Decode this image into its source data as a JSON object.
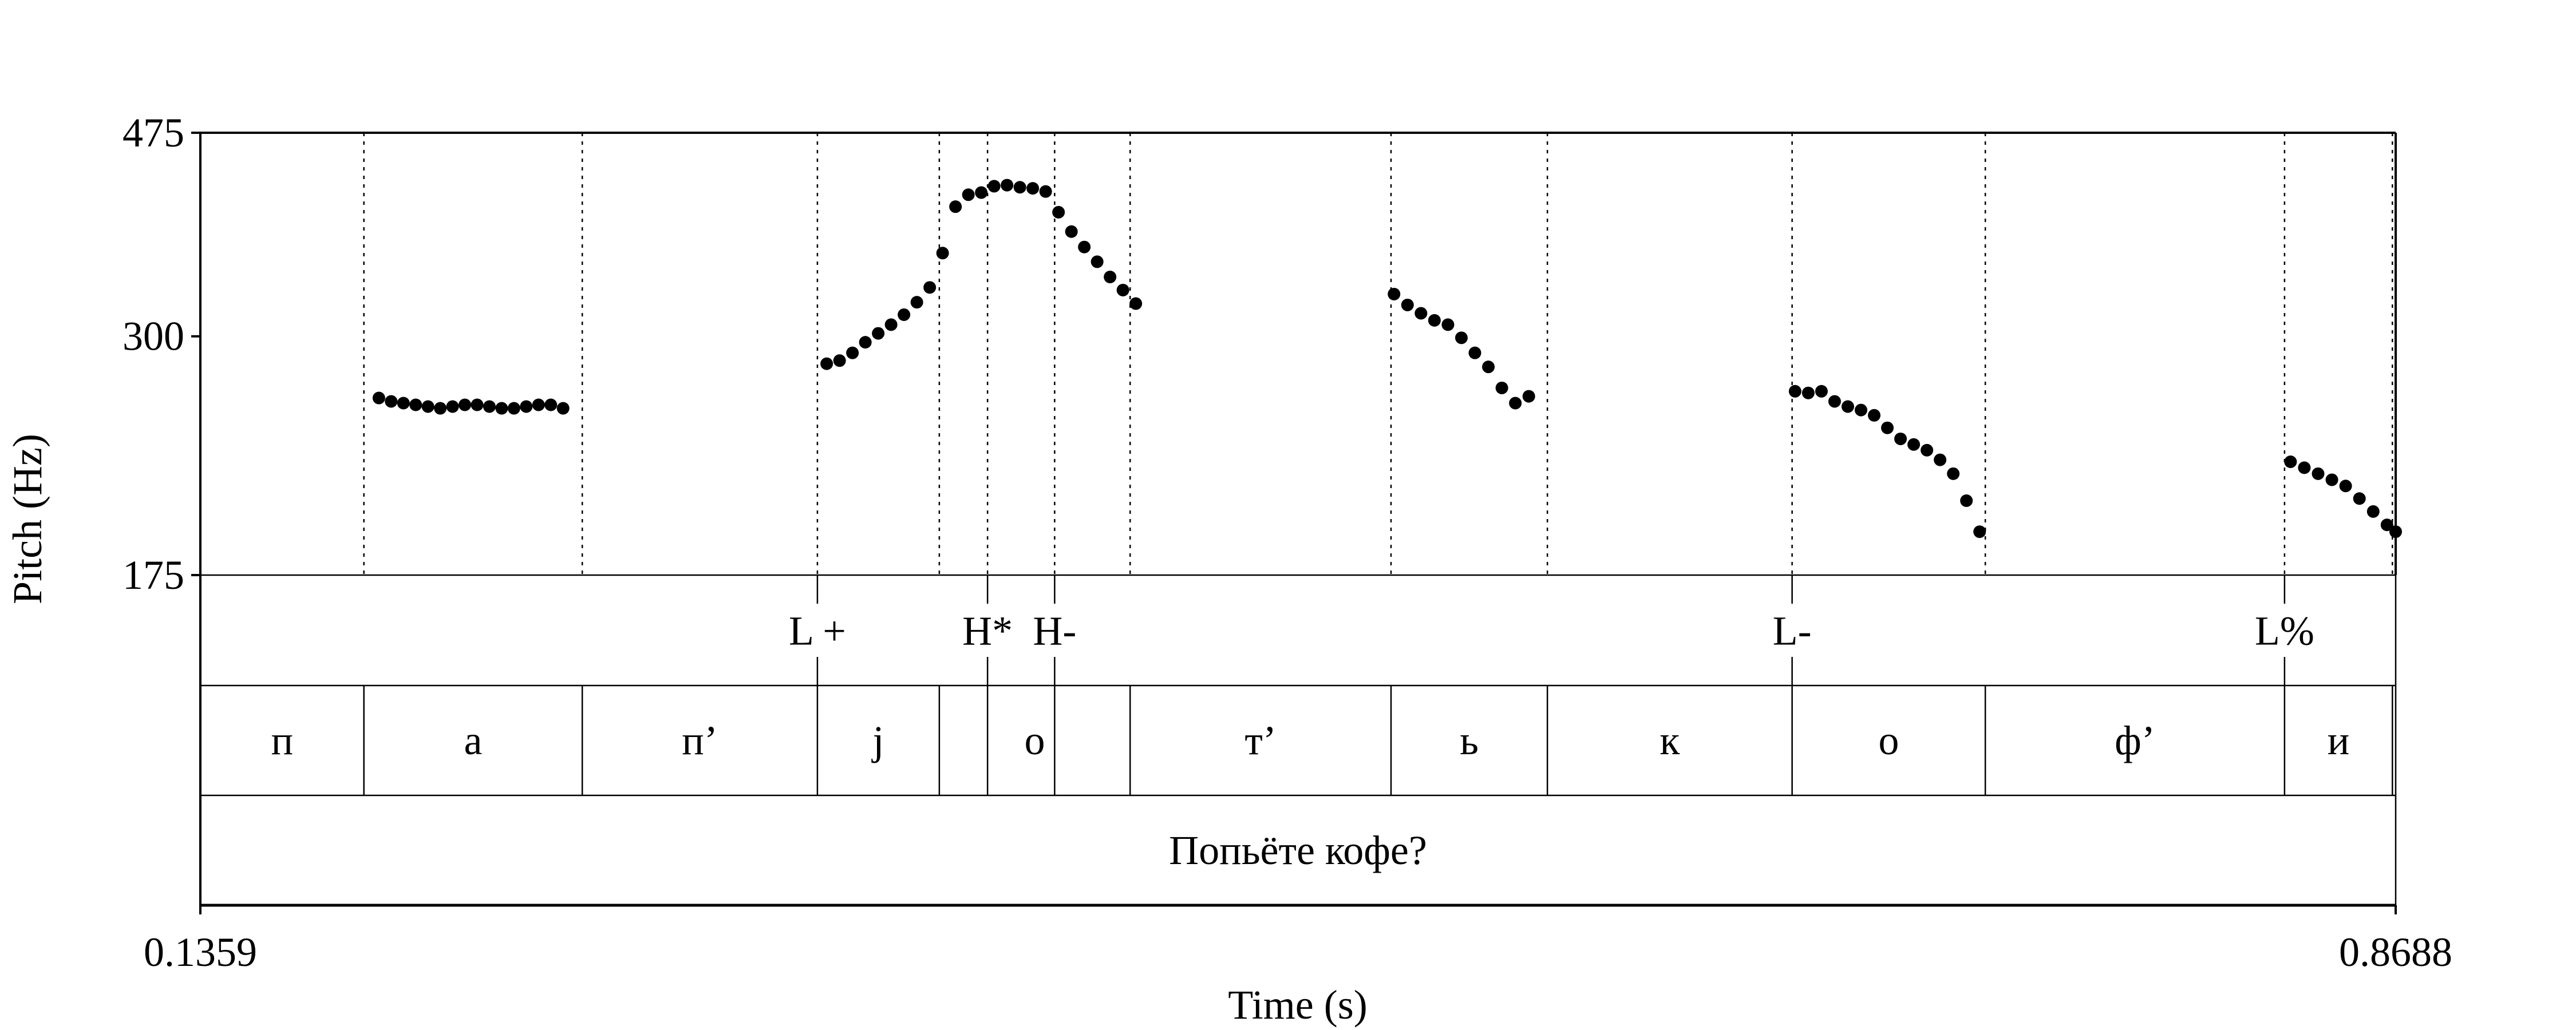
{
  "chart_data": {
    "type": "scatter",
    "ylabel": "Pitch (Hz)",
    "xlabel": "Time (s)",
    "xlim": [
      0.1359,
      0.8688
    ],
    "ylim": [
      175,
      475
    ],
    "x_tick_labels": [
      "0.1359",
      "0.8688"
    ],
    "y_tick_labels": [
      "175",
      "300",
      "475"
    ],
    "y_ticks": [
      175,
      300,
      475
    ],
    "grid": false,
    "point_color": "#000000",
    "boundaries": [
      0.1359,
      0.1905,
      0.2634,
      0.3419,
      0.3826,
      0.3987,
      0.4211,
      0.4463,
      0.5334,
      0.5856,
      0.6673,
      0.7318,
      0.8317,
      0.8677
    ],
    "pitch_guides": [
      0.1905,
      0.2634,
      0.3419,
      0.3826,
      0.3987,
      0.4211,
      0.4463,
      0.5334,
      0.5856,
      0.6673,
      0.7318,
      0.8317,
      0.8677
    ],
    "tones": [
      {
        "label": "L +",
        "time": 0.3419
      },
      {
        "label": "H*",
        "time": 0.3987
      },
      {
        "label": "H-",
        "time": 0.4211
      },
      {
        "label": "L-",
        "time": 0.6673
      },
      {
        "label": "L%",
        "time": 0.8317
      }
    ],
    "segments": [
      {
        "label": "п",
        "start": 0.1359,
        "end": 0.1905
      },
      {
        "label": "а",
        "start": 0.1905,
        "end": 0.2634
      },
      {
        "label": "п’",
        "start": 0.2634,
        "end": 0.3419
      },
      {
        "label": "j",
        "start": 0.3419,
        "end": 0.3826
      },
      {
        "label": "о",
        "start": 0.3826,
        "end": 0.4463
      },
      {
        "label": "т’",
        "start": 0.4463,
        "end": 0.5334
      },
      {
        "label": "ь",
        "start": 0.5334,
        "end": 0.5856
      },
      {
        "label": "к",
        "start": 0.5856,
        "end": 0.6673
      },
      {
        "label": "о",
        "start": 0.6673,
        "end": 0.7318
      },
      {
        "label": "ф’",
        "start": 0.7318,
        "end": 0.8317
      },
      {
        "label": "и",
        "start": 0.8317,
        "end": 0.8677
      }
    ],
    "utterance": "Попьёте кофе?",
    "series": [
      {
        "points": [
          [
            0.1955,
            261
          ],
          [
            0.1996,
            259
          ],
          [
            0.2037,
            258
          ],
          [
            0.2078,
            257
          ],
          [
            0.2119,
            256
          ],
          [
            0.216,
            255
          ],
          [
            0.2201,
            256
          ],
          [
            0.2242,
            257
          ],
          [
            0.2283,
            257
          ],
          [
            0.2324,
            256
          ],
          [
            0.2365,
            255
          ],
          [
            0.2406,
            255
          ],
          [
            0.2447,
            256
          ],
          [
            0.2488,
            257
          ],
          [
            0.2529,
            257
          ],
          [
            0.257,
            255
          ],
          [
            0.345,
            282
          ],
          [
            0.3493,
            284
          ],
          [
            0.3536,
            289
          ],
          [
            0.3579,
            296
          ],
          [
            0.3622,
            302
          ],
          [
            0.3665,
            308
          ],
          [
            0.3708,
            315
          ],
          [
            0.3751,
            324
          ],
          [
            0.3794,
            335
          ],
          [
            0.3837,
            362
          ],
          [
            0.388,
            402
          ],
          [
            0.3923,
            413
          ],
          [
            0.3966,
            415
          ],
          [
            0.4009,
            421
          ],
          [
            0.4052,
            422
          ],
          [
            0.4095,
            420
          ],
          [
            0.4138,
            419
          ],
          [
            0.4181,
            416
          ],
          [
            0.4224,
            397
          ],
          [
            0.4267,
            380
          ],
          [
            0.431,
            367
          ],
          [
            0.4353,
            355
          ],
          [
            0.4396,
            343
          ],
          [
            0.4439,
            333
          ],
          [
            0.4482,
            323
          ],
          [
            0.5344,
            330
          ],
          [
            0.5389,
            322
          ],
          [
            0.5434,
            316
          ],
          [
            0.5479,
            311
          ],
          [
            0.5524,
            308
          ],
          [
            0.5569,
            299
          ],
          [
            0.5614,
            289
          ],
          [
            0.5659,
            280
          ],
          [
            0.5704,
            267
          ],
          [
            0.5749,
            258
          ],
          [
            0.5794,
            262
          ],
          [
            0.6683,
            265
          ],
          [
            0.6727,
            264
          ],
          [
            0.6771,
            265
          ],
          [
            0.6815,
            259
          ],
          [
            0.6859,
            256
          ],
          [
            0.6903,
            254
          ],
          [
            0.6947,
            251
          ],
          [
            0.6991,
            244
          ],
          [
            0.7035,
            238
          ],
          [
            0.7079,
            235
          ],
          [
            0.7123,
            232
          ],
          [
            0.7167,
            227
          ],
          [
            0.7211,
            220
          ],
          [
            0.7255,
            207
          ],
          [
            0.7299,
            193
          ],
          [
            0.8337,
            226
          ],
          [
            0.8383,
            223
          ],
          [
            0.8429,
            220
          ],
          [
            0.8475,
            217
          ],
          [
            0.8521,
            214
          ],
          [
            0.8567,
            208
          ],
          [
            0.8613,
            202
          ],
          [
            0.8659,
            196
          ],
          [
            0.8688,
            193
          ]
        ]
      }
    ]
  }
}
